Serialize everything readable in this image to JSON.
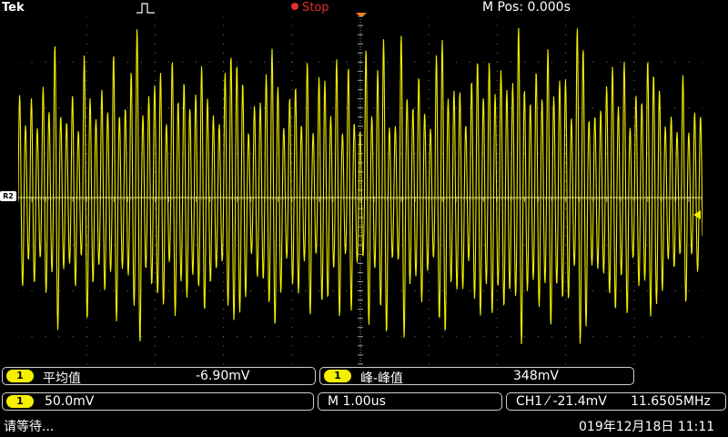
{
  "header": {
    "brand": "Tek",
    "trigger_icon": "pulse-edge-icon",
    "run_status": "Stop",
    "position_readout": "M Pos: 0.000s"
  },
  "colors": {
    "trace": "#f4f000",
    "status": "#e03030",
    "marker": "#f08020",
    "grid": "#7a7a7a"
  },
  "ref_marker": "R2",
  "measurements": {
    "mean": {
      "channel": "1",
      "label": "平均值",
      "value": "-6.90mV"
    },
    "pk2pk": {
      "channel": "1",
      "label": "峰-峰值",
      "value": "348mV"
    }
  },
  "settings": {
    "channel": "1",
    "volts_per_div": "50.0mV",
    "time_per_div": "M 1.00us",
    "trigger": "CH1 ⁄ -21.4mV",
    "frequency": "11.6505MHz"
  },
  "footer": {
    "status_message": "请等待...",
    "datetime": "019年12月18日 11:11"
  }
}
